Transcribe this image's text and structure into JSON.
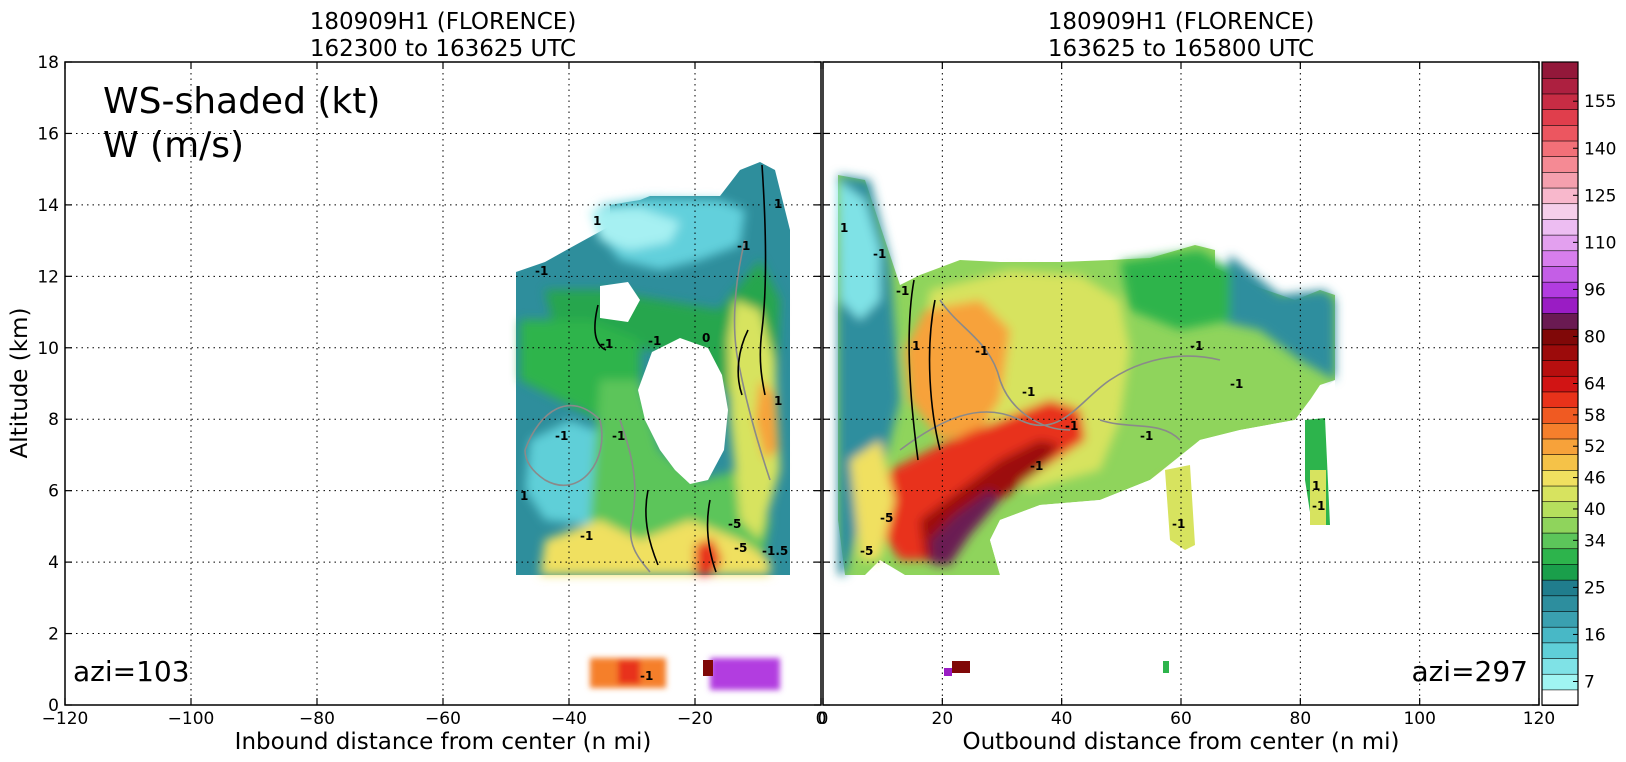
{
  "chart_data": [
    {
      "type": "heatmap",
      "panel": "left",
      "title": "180909H1 (FLORENCE)",
      "subtitle": "162300 to 163625 UTC",
      "xlabel": "Inbound distance from center (n mi)",
      "ylabel": "Altitude (km)",
      "xlim": [
        -120,
        0
      ],
      "ylim": [
        0,
        18
      ],
      "x_ticks": [
        "−120",
        "−100",
        "−80",
        "−60",
        "−40",
        "−20",
        "0"
      ],
      "y_ticks": [
        "0",
        "2",
        "4",
        "6",
        "8",
        "10",
        "12",
        "14",
        "16",
        "18"
      ],
      "grid": true,
      "legend_text": [
        "WS-shaded (kt)",
        "W (m/s)"
      ],
      "annotation": "azi=103",
      "contour_labels": [
        "1",
        "-1",
        "-1",
        "-1",
        "-1",
        "-1",
        "1",
        "-5",
        "-5",
        "-1",
        "-1.5",
        "0",
        "1",
        "-1",
        "1",
        "-1"
      ]
    },
    {
      "type": "heatmap",
      "panel": "right",
      "title": "180909H1 (FLORENCE)",
      "subtitle": "163625 to 165800 UTC",
      "xlabel": "Outbound distance from center (n mi)",
      "xlim": [
        0,
        120
      ],
      "ylim": [
        0,
        18
      ],
      "x_ticks": [
        "0",
        "20",
        "40",
        "60",
        "80",
        "100",
        "120"
      ],
      "grid": true,
      "annotation": "azi=297",
      "contour_labels": [
        "1",
        "-1",
        "-1",
        "-1",
        "1",
        "-1",
        "-5",
        "-5",
        "-1",
        "-1",
        "-1",
        "-1",
        "-1",
        "-1",
        "1",
        "-1"
      ]
    }
  ],
  "colorbar": {
    "ticks": [
      "155",
      "140",
      "125",
      "110",
      "96",
      "80",
      "64",
      "58",
      "52",
      "46",
      "40",
      "34",
      "25",
      "16",
      "7"
    ],
    "colors": [
      "#ffffff",
      "#a0f5f2",
      "#7fe2e6",
      "#5fcfd8",
      "#48b8c6",
      "#3aa0b0",
      "#2d8e9e",
      "#207d8d",
      "#1a9f4b",
      "#2db44c",
      "#5cc55a",
      "#8fd45c",
      "#b6df5d",
      "#d7e35f",
      "#f0e060",
      "#f5c248",
      "#f7a23a",
      "#f57f2c",
      "#f05a22",
      "#e8321a",
      "#d11414",
      "#b70f0f",
      "#9c0b0b",
      "#800808",
      "#6a1a52",
      "#9a1cc4",
      "#b23ce0",
      "#c45ee6",
      "#d77eec",
      "#e3a0ef",
      "#edbdf2",
      "#f5cfea",
      "#f8b8cc",
      "#f5a0ae",
      "#f58a94",
      "#f27078",
      "#ec5660",
      "#e03e4c",
      "#c72c44",
      "#ad2040",
      "#93183a"
    ]
  }
}
